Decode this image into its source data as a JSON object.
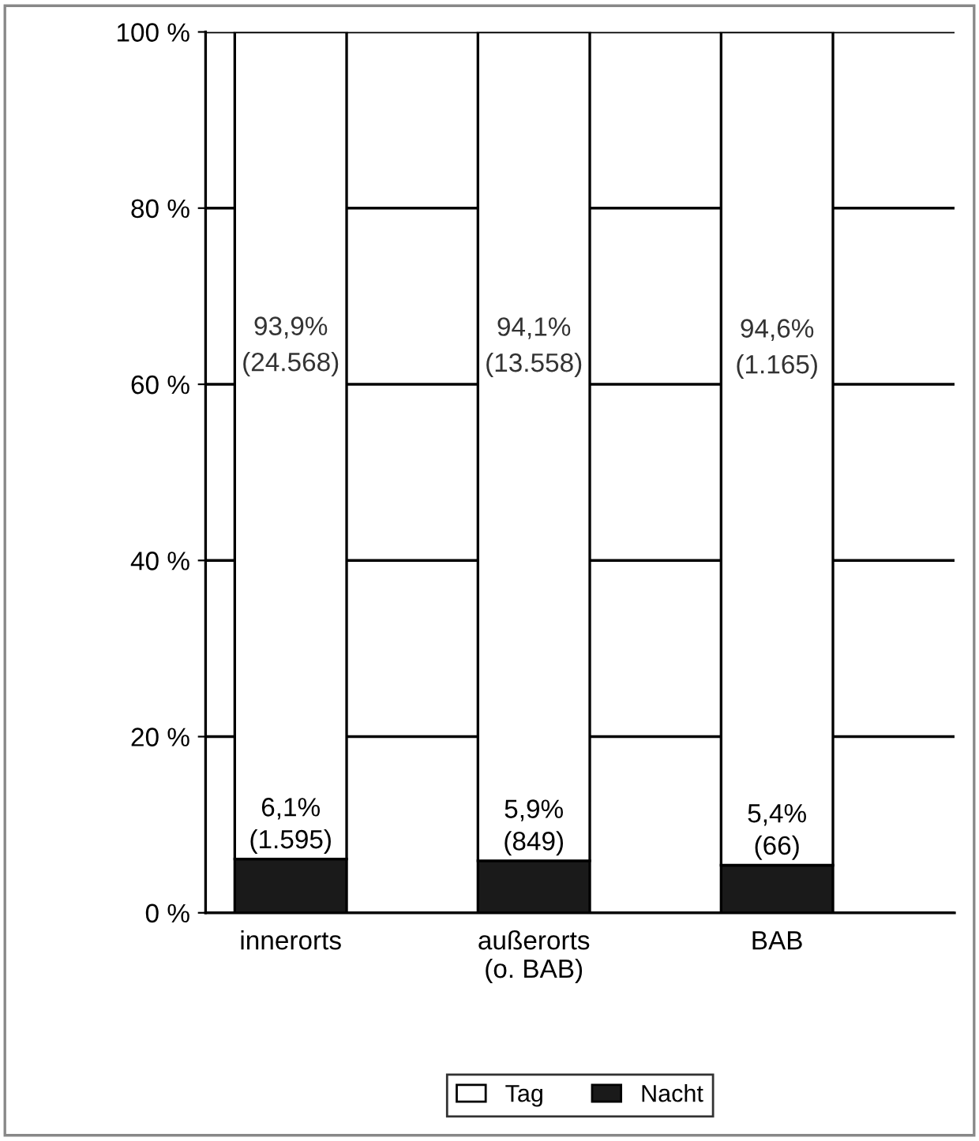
{
  "chart_data": {
    "type": "bar",
    "stacked": true,
    "categories": [
      "innerorts",
      "außerorts\n(o. BAB)",
      "BAB"
    ],
    "series": [
      {
        "name": "Nacht",
        "color": "#1a1a1a",
        "values": [
          6.1,
          5.9,
          5.4
        ],
        "value_labels": [
          "6,1%\n(1.595)",
          "5,9%\n(849)",
          "5,4%\n(66)"
        ]
      },
      {
        "name": "Tag",
        "color": "#ffffff",
        "values": [
          93.9,
          94.1,
          94.6
        ],
        "value_labels": [
          "93,9%\n(24.568)",
          "94,1%\n(13.558)",
          "94,6%\n(1.165)"
        ]
      }
    ],
    "ylim": [
      0,
      100
    ],
    "yticks": [
      {
        "value": 0,
        "label": "0 %"
      },
      {
        "value": 20,
        "label": "20 %"
      },
      {
        "value": 40,
        "label": "40 %"
      },
      {
        "value": 60,
        "label": "60 %"
      },
      {
        "value": 80,
        "label": "80 %"
      },
      {
        "value": 100,
        "label": "100 %"
      }
    ],
    "grid": "y",
    "legend": "bottom"
  }
}
